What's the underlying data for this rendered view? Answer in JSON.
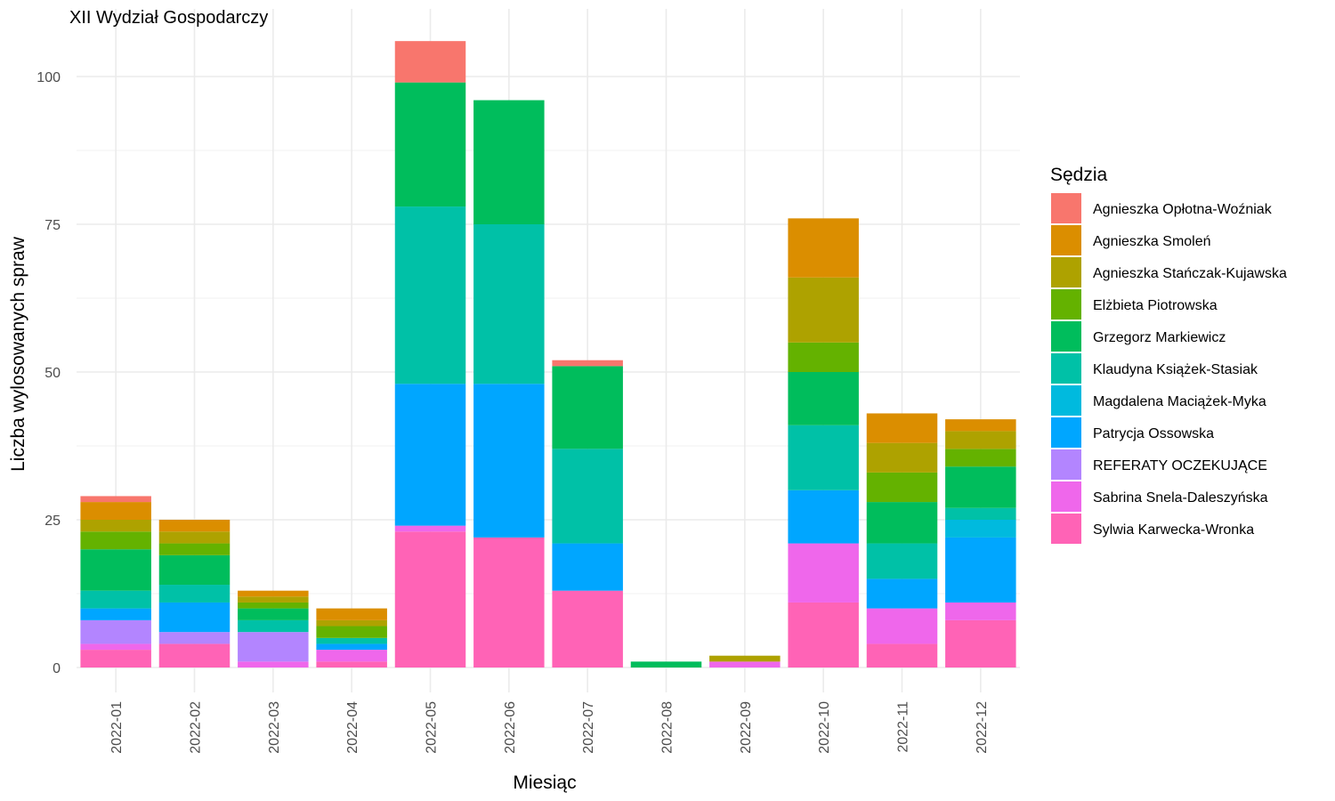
{
  "chart_data": {
    "type": "bar",
    "stacked": true,
    "title": "XII Wydział Gospodarczy",
    "xlabel": "Miesiąc",
    "ylabel": "Liczba wylosowanych spraw",
    "ylim": [
      0,
      106
    ],
    "yticks": [
      0,
      25,
      50,
      75,
      100
    ],
    "grid": true,
    "legend_title": "Sędzia",
    "legend_position": "right",
    "categories": [
      "2022-01",
      "2022-02",
      "2022-03",
      "2022-04",
      "2022-05",
      "2022-06",
      "2022-07",
      "2022-08",
      "2022-09",
      "2022-10",
      "2022-11",
      "2022-12"
    ],
    "series": [
      {
        "name": "Agnieszka Opłotna-Woźniak",
        "color": "#F8766D",
        "values": [
          1,
          0,
          0,
          0,
          7,
          0,
          1,
          0,
          0,
          0,
          0,
          0
        ]
      },
      {
        "name": "Agnieszka Smoleń",
        "color": "#DB8E00",
        "values": [
          3,
          2,
          1,
          2,
          0,
          0,
          0,
          0,
          0,
          10,
          5,
          2
        ]
      },
      {
        "name": "Agnieszka Stańczak-Kujawska",
        "color": "#AEA200",
        "values": [
          2,
          2,
          1,
          1,
          0,
          0,
          0,
          0,
          1,
          11,
          5,
          3
        ]
      },
      {
        "name": "Elżbieta Piotrowska",
        "color": "#64B200",
        "values": [
          3,
          2,
          1,
          2,
          0,
          0,
          0,
          0,
          0,
          5,
          5,
          3
        ]
      },
      {
        "name": "Grzegorz Markiewicz",
        "color": "#00BD5C",
        "values": [
          7,
          5,
          2,
          0,
          21,
          21,
          14,
          1,
          0,
          9,
          7,
          7
        ]
      },
      {
        "name": "Klaudyna Książek-Stasiak",
        "color": "#00C1A7",
        "values": [
          3,
          3,
          2,
          1,
          30,
          27,
          16,
          0,
          0,
          11,
          6,
          2
        ]
      },
      {
        "name": "Magdalena Maciążek-Myka",
        "color": "#00BADE",
        "values": [
          0,
          0,
          0,
          0,
          0,
          0,
          0,
          0,
          0,
          0,
          0,
          3
        ]
      },
      {
        "name": "Patrycja Ossowska",
        "color": "#00A6FF",
        "values": [
          2,
          5,
          0,
          1,
          24,
          26,
          8,
          0,
          0,
          9,
          5,
          11
        ]
      },
      {
        "name": "REFERATY OCZEKUJĄCE",
        "color": "#B385FF",
        "values": [
          4,
          2,
          5,
          0,
          0,
          0,
          0,
          0,
          0,
          0,
          0,
          0
        ]
      },
      {
        "name": "Sabrina Snela-Daleszyńska",
        "color": "#EF67EB",
        "values": [
          1,
          0,
          1,
          2,
          1,
          0,
          0,
          0,
          1,
          10,
          6,
          3
        ]
      },
      {
        "name": "Sylwia Karwecka-Wronka",
        "color": "#FF63B6",
        "values": [
          3,
          4,
          0,
          1,
          23,
          22,
          13,
          0,
          0,
          11,
          4,
          8
        ]
      }
    ]
  }
}
